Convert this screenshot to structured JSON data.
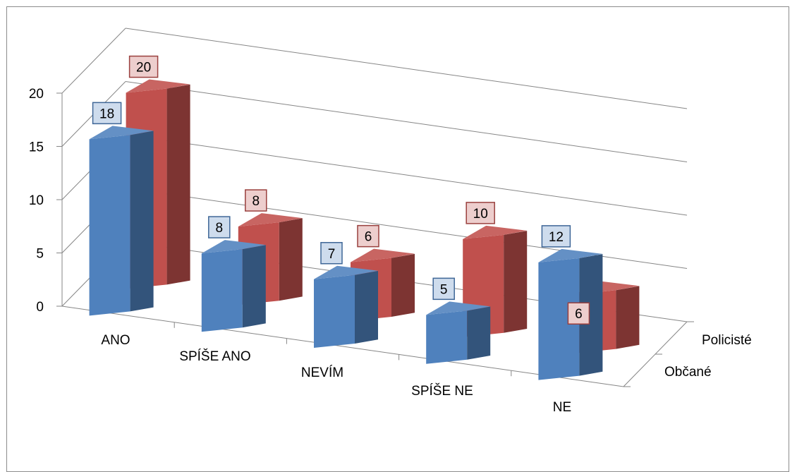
{
  "chart_data": {
    "type": "bar",
    "categories": [
      "ANO",
      "SPÍŠE ANO",
      "NEVÍM",
      "SPÍŠE NE",
      "NE"
    ],
    "series": [
      {
        "name": "Občané",
        "values": [
          18,
          8,
          7,
          5,
          12
        ],
        "color": "#4f81bd"
      },
      {
        "name": "Policisté",
        "values": [
          20,
          8,
          6,
          10,
          6
        ],
        "color": "#c0504d"
      }
    ],
    "yticks": [
      "0",
      "5",
      "10",
      "15",
      "20"
    ],
    "ylim": [
      0,
      20
    ],
    "grid": true,
    "style": "3d-clustered-depth"
  }
}
